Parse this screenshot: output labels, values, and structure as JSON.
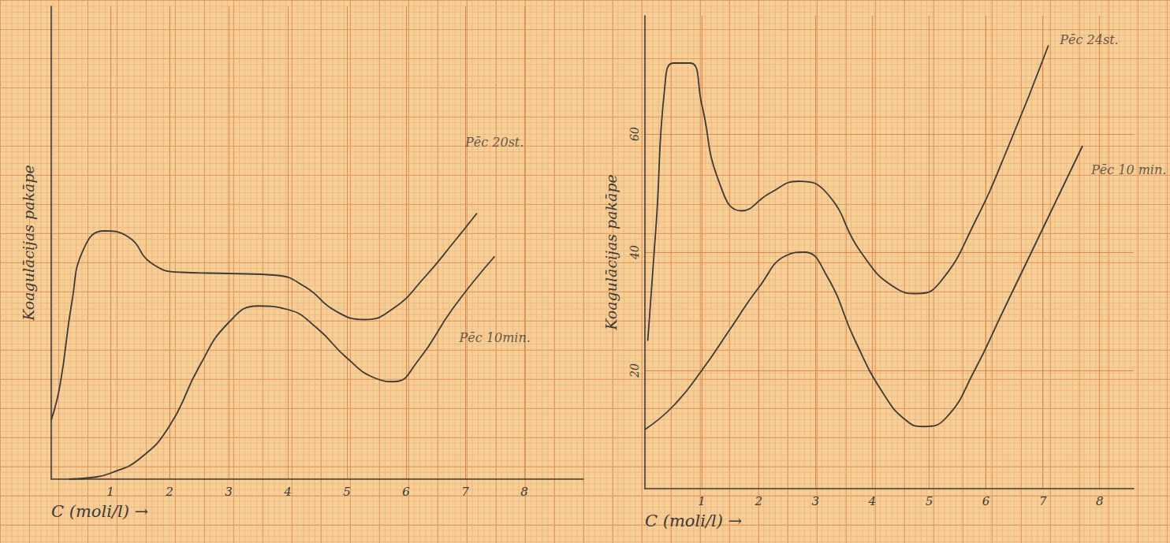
{
  "chart_data": [
    {
      "type": "line",
      "x_label": "C (moli/l) →",
      "y_label": "Koagulācijas pakāpe",
      "xlim": [
        0,
        9
      ],
      "xticks": [
        1,
        2,
        3,
        4,
        5,
        6,
        7,
        8
      ],
      "ylim": [
        0,
        80
      ],
      "tick_labels": "x",
      "grid": true,
      "series": [
        {
          "color": "#3d3a38",
          "x": [
            0,
            0.15,
            0.35,
            0.55,
            0.9,
            1.3,
            1.7,
            2.2,
            3.0,
            3.8,
            4.3,
            4.8,
            5.3,
            5.8,
            6.3,
            6.8,
            7.2
          ],
          "values": [
            10,
            16,
            30,
            39,
            42,
            41,
            36.5,
            35,
            34.8,
            34.5,
            32.5,
            28.5,
            27,
            29,
            34,
            40,
            45
          ]
        },
        {
          "color": "#3d3a38",
          "x": [
            0.3,
            0.7,
            1.0,
            1.5,
            2.0,
            2.5,
            3.0,
            3.5,
            4.0,
            4.5,
            5.0,
            5.5,
            5.8,
            6.2,
            6.8,
            7.5
          ],
          "values": [
            0,
            0.3,
            1,
            3.5,
            9,
            19,
            26.5,
            29.3,
            28.7,
            25.5,
            20.5,
            17,
            16.5,
            20,
            29,
            37.7
          ]
        }
      ],
      "annotations": [
        {
          "text": "Pēc 20st.",
          "x": 7.0,
          "y": 57
        },
        {
          "text": "Pēc 10min.",
          "x": 6.9,
          "y": 24
        }
      ]
    },
    {
      "type": "line",
      "x_label": "C (moli/l) →",
      "y_label": "Koagulācijas pakāpe",
      "xlim": [
        0,
        8.6
      ],
      "xticks": [
        1,
        2,
        3,
        4,
        5,
        6,
        7,
        8
      ],
      "ylim": [
        0,
        80
      ],
      "yticks": [
        20,
        40,
        60
      ],
      "grid": true,
      "series": [
        {
          "color": "#3d3a38",
          "x": [
            0.05,
            0.2,
            0.35,
            0.5,
            0.8,
            1.0,
            1.3,
            1.7,
            2.2,
            2.7,
            3.2,
            3.8,
            4.4,
            4.8,
            5.2,
            5.8,
            6.4,
            7.1
          ],
          "values": [
            25,
            45,
            68,
            72,
            72,
            65,
            52,
            47,
            50,
            52,
            50,
            40,
            34,
            33,
            35,
            45,
            58,
            75
          ]
        },
        {
          "color": "#3d3a38",
          "x": [
            0,
            0.5,
            1.0,
            1.5,
            2.0,
            2.5,
            2.8,
            3.2,
            3.7,
            4.2,
            4.6,
            4.9,
            5.3,
            5.8,
            6.3,
            6.9,
            7.3,
            7.7
          ],
          "values": [
            10,
            14,
            20,
            27,
            34,
            39.5,
            40,
            36,
            25,
            16,
            11.5,
            10.5,
            12,
            20,
            30,
            42,
            50,
            58
          ]
        }
      ],
      "annotations": [
        {
          "text": "Pēc 24st.",
          "x": 7.3,
          "y": 76
        },
        {
          "text": "Pēc 10 min.",
          "x": 7.85,
          "y": 54
        }
      ]
    }
  ]
}
